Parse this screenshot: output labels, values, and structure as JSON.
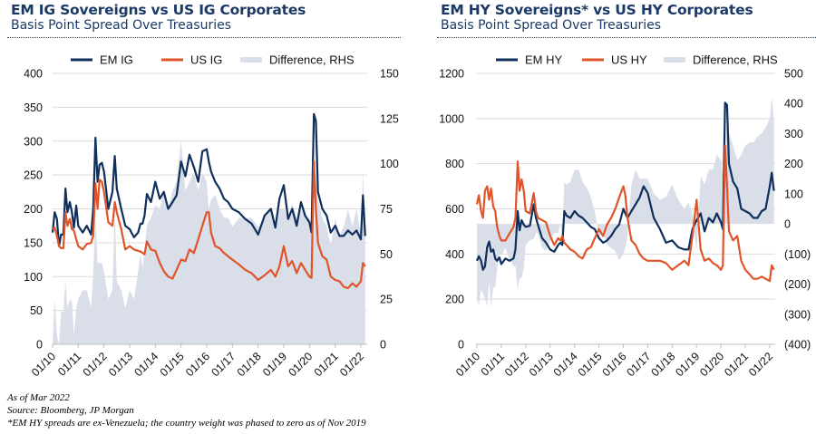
{
  "footnotes": [
    "As of Mar 2022",
    "Source: Bloomberg, JP Morgan",
    "*EM HY spreads are ex-Venezuela; the country weight was phased to zero as of Nov 2019"
  ],
  "colors": {
    "em": "#0f2f5c",
    "us": "#e0542a",
    "difference": "#d9dee9",
    "title": "#1b3a66",
    "grid": "#d9d9d9"
  },
  "chart_data": [
    {
      "type": "line",
      "title": "EM IG Sovereigns vs US IG Corporates",
      "subtitle": "Basis Point Spread Over Treasuries",
      "xlabel": "",
      "ylabel": "",
      "ylim": [
        0,
        400
      ],
      "y2lim": [
        0,
        150
      ],
      "yticks": [
        "0",
        "50",
        "100",
        "150",
        "200",
        "250",
        "300",
        "350",
        "400"
      ],
      "y2ticks": [
        "0",
        "25",
        "50",
        "75",
        "100",
        "125",
        "150"
      ],
      "x_tick_labels": [
        "01/10",
        "01/11",
        "01/12",
        "01/13",
        "01/14",
        "01/15",
        "01/16",
        "01/17",
        "01/18",
        "01/19",
        "01/20",
        "01/21",
        "01/22"
      ],
      "x_range": [
        "01/10",
        "03/22"
      ],
      "grid": true,
      "legend_position": "top",
      "legend": [
        "EM IG",
        "US IG",
        "Difference, RHS"
      ],
      "x_anchor_years": [
        2010.0,
        2010.08,
        2010.17,
        2010.25,
        2010.33,
        2010.42,
        2010.5,
        2010.58,
        2010.67,
        2010.75,
        2010.83,
        2010.92,
        2011.0,
        2011.17,
        2011.33,
        2011.5,
        2011.58,
        2011.67,
        2011.75,
        2011.83,
        2011.92,
        2012.0,
        2012.17,
        2012.33,
        2012.42,
        2012.5,
        2012.67,
        2012.83,
        2013.0,
        2013.17,
        2013.33,
        2013.42,
        2013.5,
        2013.58,
        2013.67,
        2013.83,
        2014.0,
        2014.17,
        2014.33,
        2014.5,
        2014.67,
        2014.83,
        2015.0,
        2015.17,
        2015.33,
        2015.5,
        2015.67,
        2015.83,
        2016.0,
        2016.08,
        2016.17,
        2016.33,
        2016.5,
        2016.67,
        2016.83,
        2017.0,
        2017.25,
        2017.5,
        2017.75,
        2018.0,
        2018.25,
        2018.5,
        2018.67,
        2018.83,
        2019.0,
        2019.17,
        2019.33,
        2019.5,
        2019.67,
        2019.83,
        2020.0,
        2020.08,
        2020.17,
        2020.25,
        2020.33,
        2020.5,
        2020.67,
        2020.83,
        2021.0,
        2021.17,
        2021.33,
        2021.5,
        2021.67,
        2021.83,
        2022.0,
        2022.08,
        2022.17
      ],
      "series": [
        {
          "name": "EM IG",
          "axis": "left",
          "values": [
            165,
            195,
            185,
            145,
            162,
            162,
            230,
            195,
            210,
            195,
            172,
            205,
            175,
            165,
            175,
            162,
            200,
            305,
            240,
            265,
            268,
            255,
            200,
            225,
            278,
            230,
            200,
            175,
            170,
            158,
            165,
            178,
            178,
            190,
            222,
            210,
            240,
            215,
            225,
            200,
            210,
            220,
            270,
            248,
            280,
            262,
            240,
            285,
            288,
            270,
            255,
            240,
            230,
            215,
            210,
            200,
            195,
            185,
            178,
            162,
            190,
            200,
            172,
            215,
            235,
            185,
            200,
            175,
            210,
            190,
            180,
            165,
            340,
            330,
            225,
            200,
            190,
            165,
            175,
            160,
            160,
            168,
            162,
            168,
            155,
            220,
            160
          ]
        },
        {
          "name": "US IG",
          "axis": "left",
          "values": [
            170,
            172,
            160,
            145,
            142,
            142,
            195,
            175,
            185,
            170,
            168,
            155,
            145,
            140,
            148,
            150,
            160,
            238,
            200,
            243,
            240,
            225,
            180,
            175,
            210,
            195,
            170,
            140,
            145,
            140,
            138,
            137,
            135,
            133,
            152,
            140,
            138,
            120,
            108,
            100,
            97,
            110,
            125,
            123,
            140,
            135,
            155,
            175,
            195,
            195,
            165,
            145,
            142,
            135,
            130,
            125,
            118,
            110,
            105,
            95,
            102,
            110,
            100,
            115,
            145,
            115,
            123,
            105,
            120,
            110,
            100,
            98,
            270,
            200,
            150,
            130,
            125,
            100,
            95,
            93,
            85,
            83,
            90,
            85,
            93,
            120,
            115
          ]
        },
        {
          "name": "Difference, RHS",
          "axis": "right",
          "type": "area",
          "values": [
            0,
            25,
            5,
            0,
            18,
            18,
            35,
            20,
            25,
            24,
            5,
            20,
            25,
            30,
            30,
            20,
            40,
            70,
            45,
            45,
            45,
            40,
            25,
            30,
            75,
            35,
            30,
            20,
            30,
            25,
            40,
            50,
            42,
            52,
            66,
            70,
            77,
            75,
            85,
            75,
            85,
            90,
            113,
            85,
            90,
            95,
            85,
            95,
            90,
            75,
            80,
            83,
            75,
            70,
            70,
            65,
            70,
            70,
            70,
            65,
            70,
            75,
            62,
            75,
            75,
            70,
            78,
            70,
            75,
            70,
            70,
            60,
            60,
            95,
            80,
            70,
            65,
            55,
            70,
            60,
            65,
            75,
            65,
            75,
            60,
            95,
            60
          ]
        }
      ]
    },
    {
      "type": "line",
      "title": "EM HY Sovereigns* vs US HY Corporates",
      "subtitle": "Basis Point Spread Over Treasuries",
      "xlabel": "",
      "ylabel": "",
      "ylim": [
        0,
        1200
      ],
      "y2lim": [
        -400,
        500
      ],
      "yticks": [
        "0",
        "200",
        "400",
        "600",
        "800",
        "1000",
        "1200"
      ],
      "y2ticks": [
        "(400)",
        "(300)",
        "(200)",
        "(100)",
        "0",
        "100",
        "200",
        "300",
        "400",
        "500"
      ],
      "x_tick_labels": [
        "01/10",
        "01/11",
        "01/12",
        "01/13",
        "01/14",
        "01/15",
        "01/16",
        "01/17",
        "01/18",
        "01/19",
        "01/20",
        "01/21",
        "01/22"
      ],
      "x_range": [
        "01/10",
        "03/22"
      ],
      "grid": true,
      "legend_position": "top",
      "legend": [
        "EM HY",
        "US HY",
        "Difference, RHS"
      ],
      "x_anchor_years": [
        2010.0,
        2010.08,
        2010.17,
        2010.25,
        2010.33,
        2010.42,
        2010.5,
        2010.58,
        2010.67,
        2010.75,
        2010.83,
        2010.92,
        2011.0,
        2011.17,
        2011.33,
        2011.5,
        2011.58,
        2011.67,
        2011.75,
        2011.83,
        2011.92,
        2012.0,
        2012.17,
        2012.33,
        2012.42,
        2012.5,
        2012.67,
        2012.83,
        2013.0,
        2013.17,
        2013.33,
        2013.42,
        2013.5,
        2013.58,
        2013.67,
        2013.83,
        2014.0,
        2014.17,
        2014.33,
        2014.5,
        2014.67,
        2014.83,
        2015.0,
        2015.17,
        2015.33,
        2015.5,
        2015.67,
        2015.83,
        2016.0,
        2016.08,
        2016.17,
        2016.33,
        2016.5,
        2016.67,
        2016.83,
        2017.0,
        2017.25,
        2017.5,
        2017.75,
        2018.0,
        2018.25,
        2018.5,
        2018.67,
        2018.83,
        2019.0,
        2019.17,
        2019.33,
        2019.5,
        2019.67,
        2019.83,
        2020.0,
        2020.08,
        2020.17,
        2020.25,
        2020.33,
        2020.5,
        2020.67,
        2020.83,
        2021.0,
        2021.17,
        2021.33,
        2021.5,
        2021.67,
        2021.83,
        2022.0,
        2022.08,
        2022.17
      ],
      "series": [
        {
          "name": "EM HY",
          "axis": "left",
          "values": [
            370,
            390,
            370,
            330,
            345,
            430,
            455,
            410,
            420,
            380,
            370,
            385,
            355,
            380,
            370,
            380,
            420,
            590,
            505,
            550,
            530,
            520,
            525,
            620,
            560,
            530,
            470,
            450,
            420,
            410,
            440,
            450,
            440,
            590,
            570,
            560,
            590,
            570,
            560,
            540,
            520,
            510,
            470,
            450,
            460,
            480,
            510,
            530,
            600,
            580,
            560,
            590,
            620,
            650,
            700,
            670,
            560,
            510,
            450,
            460,
            430,
            420,
            420,
            510,
            550,
            580,
            500,
            560,
            540,
            580,
            540,
            510,
            1070,
            1060,
            800,
            720,
            690,
            600,
            590,
            580,
            560,
            560,
            590,
            600,
            700,
            760,
            680
          ]
        },
        {
          "name": "US HY",
          "axis": "left",
          "values": [
            620,
            660,
            590,
            560,
            680,
            700,
            640,
            690,
            610,
            590,
            520,
            480,
            460,
            460,
            490,
            520,
            560,
            810,
            680,
            730,
            680,
            590,
            580,
            670,
            590,
            560,
            550,
            540,
            480,
            440,
            470,
            460,
            480,
            450,
            440,
            420,
            410,
            390,
            380,
            420,
            430,
            470,
            510,
            480,
            530,
            560,
            600,
            650,
            700,
            660,
            560,
            460,
            440,
            400,
            380,
            370,
            370,
            370,
            360,
            330,
            350,
            370,
            350,
            480,
            640,
            420,
            370,
            380,
            360,
            350,
            330,
            350,
            880,
            700,
            500,
            460,
            480,
            370,
            330,
            310,
            290,
            290,
            300,
            290,
            280,
            350,
            330
          ]
        },
        {
          "name": "Difference, RHS",
          "axis": "right",
          "type": "area",
          "values": [
            -250,
            -270,
            -220,
            -230,
            -250,
            -270,
            -190,
            -280,
            -210,
            -210,
            -150,
            -100,
            -105,
            -80,
            -120,
            -140,
            -140,
            -220,
            -180,
            -180,
            -150,
            -70,
            -55,
            -50,
            -30,
            -30,
            -80,
            -90,
            -60,
            -30,
            -30,
            0,
            -40,
            140,
            130,
            140,
            180,
            180,
            140,
            120,
            90,
            40,
            -40,
            -30,
            -70,
            -80,
            -90,
            -120,
            -100,
            -80,
            -40,
            130,
            180,
            150,
            150,
            150,
            100,
            80,
            90,
            130,
            80,
            50,
            70,
            30,
            -90,
            160,
            130,
            180,
            180,
            230,
            210,
            160,
            190,
            360,
            300,
            260,
            210,
            230,
            260,
            270,
            270,
            290,
            300,
            320,
            350,
            420,
            350
          ]
        }
      ]
    }
  ]
}
